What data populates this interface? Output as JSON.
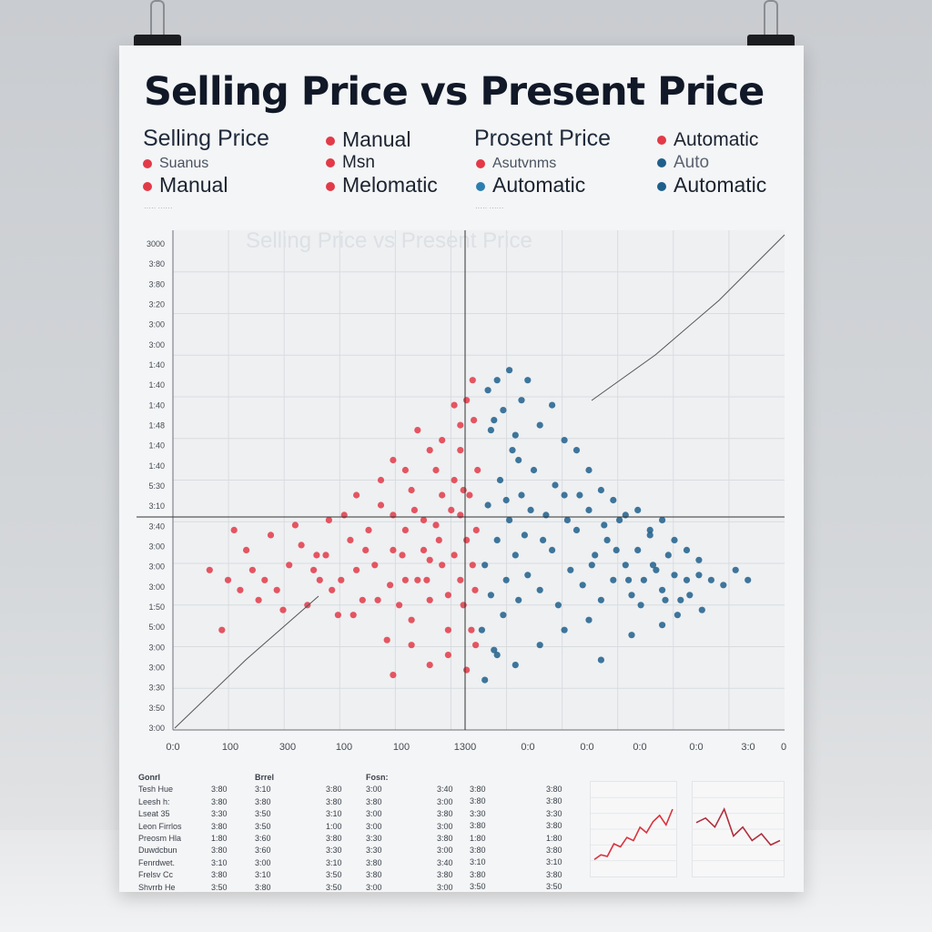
{
  "poster": {
    "title": "Selling Price vs Present Price",
    "legend": [
      {
        "text": "Selling Price",
        "head": true,
        "color": ""
      },
      {
        "text": "Manual",
        "head": false,
        "color": "#e23a48"
      },
      {
        "text": "Prosent Price",
        "head": true,
        "color": ""
      },
      {
        "text": "Automatic",
        "head": false,
        "color": "#e23a48"
      },
      {
        "text": "Suanus",
        "head": false,
        "color": "#e23a48"
      },
      {
        "text": "Msn",
        "head": false,
        "color": "#e23a48"
      },
      {
        "text": "Asutvnms",
        "head": false,
        "color": "#e23a48"
      },
      {
        "text": "Auto",
        "head": false,
        "color": "#1e5f8c"
      },
      {
        "text": "Manual",
        "head": false,
        "color": "#e23a48"
      },
      {
        "text": "Melomatic",
        "head": false,
        "color": "#e23a48"
      },
      {
        "text": "Automatic",
        "head": false,
        "color": "#2b7fb0"
      },
      {
        "text": "Automatic",
        "head": false,
        "color": "#1e5f8c"
      }
    ],
    "bg_plot_title": "Selling Price vs Present Price"
  },
  "chart_data": {
    "type": "scatter",
    "title": "Selling Price vs Present Price",
    "xlabel": "",
    "ylabel": "",
    "y_ticks": [
      "3000",
      "3:80",
      "3:80",
      "3:20",
      "3:00",
      "3:00",
      "1:40",
      "1:40",
      "1:40",
      "1:48",
      "1:40",
      "1:40",
      "5:30",
      "3:10",
      "3:40",
      "3:00",
      "3:00",
      "3:00",
      "1:50",
      "5:00",
      "3:00",
      "3:00",
      "3:30",
      "3:50",
      "3:00"
    ],
    "x_ticks": [
      "0:0",
      "100",
      "300",
      "100",
      "100",
      "1300",
      "0:0",
      "0:0",
      "0:0",
      "0:0",
      "3:0",
      "0"
    ],
    "xlim": [
      0,
      1000
    ],
    "ylim": [
      0,
      1000
    ],
    "grid": true,
    "series": [
      {
        "name": "Manual",
        "color": "#e23a48",
        "points": [
          [
            80,
            200
          ],
          [
            120,
            360
          ],
          [
            150,
            300
          ],
          [
            180,
            240
          ],
          [
            200,
            410
          ],
          [
            230,
            320
          ],
          [
            260,
            280
          ],
          [
            290,
            380
          ],
          [
            310,
            260
          ],
          [
            330,
            330
          ],
          [
            350,
            180
          ],
          [
            360,
            430
          ],
          [
            380,
            300
          ],
          [
            390,
            220
          ],
          [
            410,
            360
          ],
          [
            420,
            260
          ],
          [
            430,
            410
          ],
          [
            440,
            330
          ],
          [
            450,
            200
          ],
          [
            460,
            500
          ],
          [
            470,
            300
          ],
          [
            470,
            560
          ],
          [
            475,
            250
          ],
          [
            480,
            380
          ],
          [
            485,
            470
          ],
          [
            488,
            200
          ],
          [
            490,
            330
          ],
          [
            492,
            620
          ],
          [
            494,
            280
          ],
          [
            496,
            400
          ],
          [
            498,
            520
          ],
          [
            470,
            430
          ],
          [
            460,
            350
          ],
          [
            450,
            270
          ],
          [
            440,
            470
          ],
          [
            430,
            520
          ],
          [
            420,
            340
          ],
          [
            410,
            420
          ],
          [
            400,
            300
          ],
          [
            390,
            480
          ],
          [
            380,
            400
          ],
          [
            370,
            250
          ],
          [
            360,
            360
          ],
          [
            340,
            450
          ],
          [
            320,
            400
          ],
          [
            300,
            320
          ],
          [
            280,
            430
          ],
          [
            270,
            230
          ],
          [
            250,
            350
          ],
          [
            240,
            300
          ],
          [
            220,
            250
          ],
          [
            210,
            370
          ],
          [
            190,
            330
          ],
          [
            170,
            280
          ],
          [
            160,
            390
          ],
          [
            140,
            260
          ],
          [
            130,
            320
          ],
          [
            110,
            280
          ],
          [
            100,
            400
          ],
          [
            90,
            300
          ],
          [
            60,
            320
          ],
          [
            480,
            660
          ],
          [
            490,
            700
          ],
          [
            470,
            610
          ],
          [
            460,
            650
          ],
          [
            440,
            580
          ],
          [
            420,
            560
          ],
          [
            400,
            600
          ],
          [
            380,
            520
          ],
          [
            360,
            540
          ],
          [
            340,
            500
          ],
          [
            300,
            470
          ],
          [
            450,
            150
          ],
          [
            420,
            130
          ],
          [
            390,
            170
          ],
          [
            360,
            110
          ],
          [
            480,
            120
          ],
          [
            495,
            170
          ],
          [
            475,
            480
          ],
          [
            455,
            440
          ],
          [
            435,
            380
          ],
          [
            415,
            300
          ],
          [
            395,
            440
          ],
          [
            375,
            350
          ],
          [
            355,
            290
          ],
          [
            335,
            260
          ],
          [
            315,
            360
          ],
          [
            295,
            230
          ],
          [
            275,
            300
          ],
          [
            255,
            420
          ],
          [
            235,
            350
          ]
        ]
      },
      {
        "name": "Automatic",
        "color": "#1e5f8c",
        "points": [
          [
            505,
            200
          ],
          [
            510,
            330
          ],
          [
            515,
            450
          ],
          [
            520,
            270
          ],
          [
            525,
            620
          ],
          [
            530,
            380
          ],
          [
            535,
            500
          ],
          [
            540,
            230
          ],
          [
            545,
            300
          ],
          [
            550,
            420
          ],
          [
            555,
            560
          ],
          [
            560,
            350
          ],
          [
            565,
            260
          ],
          [
            570,
            470
          ],
          [
            575,
            390
          ],
          [
            580,
            310
          ],
          [
            590,
            520
          ],
          [
            600,
            280
          ],
          [
            610,
            430
          ],
          [
            620,
            360
          ],
          [
            630,
            250
          ],
          [
            640,
            470
          ],
          [
            650,
            320
          ],
          [
            660,
            400
          ],
          [
            670,
            290
          ],
          [
            680,
            440
          ],
          [
            690,
            350
          ],
          [
            700,
            260
          ],
          [
            710,
            380
          ],
          [
            720,
            300
          ],
          [
            730,
            420
          ],
          [
            740,
            330
          ],
          [
            750,
            270
          ],
          [
            760,
            360
          ],
          [
            770,
            300
          ],
          [
            780,
            390
          ],
          [
            790,
            320
          ],
          [
            800,
            280
          ],
          [
            810,
            350
          ],
          [
            820,
            310
          ],
          [
            830,
            260
          ],
          [
            840,
            300
          ],
          [
            860,
            310
          ],
          [
            880,
            300
          ],
          [
            900,
            290
          ],
          [
            920,
            320
          ],
          [
            940,
            300
          ],
          [
            515,
            680
          ],
          [
            520,
            600
          ],
          [
            530,
            700
          ],
          [
            540,
            640
          ],
          [
            550,
            720
          ],
          [
            560,
            590
          ],
          [
            570,
            660
          ],
          [
            580,
            700
          ],
          [
            600,
            610
          ],
          [
            620,
            650
          ],
          [
            640,
            580
          ],
          [
            660,
            560
          ],
          [
            680,
            520
          ],
          [
            700,
            480
          ],
          [
            720,
            460
          ],
          [
            740,
            430
          ],
          [
            760,
            440
          ],
          [
            780,
            400
          ],
          [
            800,
            420
          ],
          [
            820,
            380
          ],
          [
            840,
            360
          ],
          [
            860,
            340
          ],
          [
            530,
            150
          ],
          [
            560,
            130
          ],
          [
            600,
            170
          ],
          [
            640,
            200
          ],
          [
            680,
            220
          ],
          [
            700,
            140
          ],
          [
            750,
            190
          ],
          [
            800,
            210
          ],
          [
            510,
            100
          ],
          [
            525,
            160
          ],
          [
            545,
            460
          ],
          [
            565,
            540
          ],
          [
            585,
            440
          ],
          [
            605,
            380
          ],
          [
            625,
            490
          ],
          [
            645,
            420
          ],
          [
            665,
            470
          ],
          [
            685,
            330
          ],
          [
            705,
            410
          ],
          [
            725,
            360
          ],
          [
            745,
            300
          ],
          [
            765,
            250
          ],
          [
            785,
            330
          ],
          [
            805,
            260
          ],
          [
            825,
            230
          ],
          [
            845,
            270
          ],
          [
            865,
            240
          ]
        ]
      }
    ]
  },
  "table": {
    "rows": [
      [
        "Gonrl",
        "",
        "Brrel",
        "",
        "Fosn:",
        ""
      ],
      [
        "Tesh Hue",
        "3:80",
        "3:10",
        "3:80",
        "3:00",
        "3:40"
      ],
      [
        "Leesh h:",
        "3:80",
        "3:80",
        "3:80",
        "3:80",
        "3:00"
      ],
      [
        "Lseat 35",
        "3:30",
        "3:50",
        "3:10",
        "3:00",
        "3:80"
      ],
      [
        "Leon Firrlos",
        "3:80",
        "3:50",
        "1:00",
        "3:00",
        "3:00"
      ],
      [
        "Preosm Hla",
        "1:80",
        "3:60",
        "3:80",
        "3:30",
        "3:80"
      ],
      [
        "Duwdcbun",
        "3:80",
        "3:60",
        "3:30",
        "3:30",
        "3:00"
      ],
      [
        "Fenrdwet.",
        "3:10",
        "3:00",
        "3:10",
        "3:80",
        "3:40"
      ],
      [
        "Frelsv Cc",
        "3:80",
        "3:10",
        "3:50",
        "3:80",
        "3:80"
      ],
      [
        "Shvrrb He",
        "3:50",
        "3:80",
        "3:50",
        "3:00",
        "3:00"
      ]
    ]
  },
  "sparklines": [
    {
      "color": "#d9343f",
      "values": [
        14,
        20,
        18,
        34,
        30,
        42,
        38,
        55,
        48,
        62,
        70,
        58,
        78
      ]
    },
    {
      "color": "#b0303c",
      "values": [
        60,
        62,
        58,
        66,
        54,
        58,
        52,
        55,
        50,
        52
      ]
    }
  ]
}
